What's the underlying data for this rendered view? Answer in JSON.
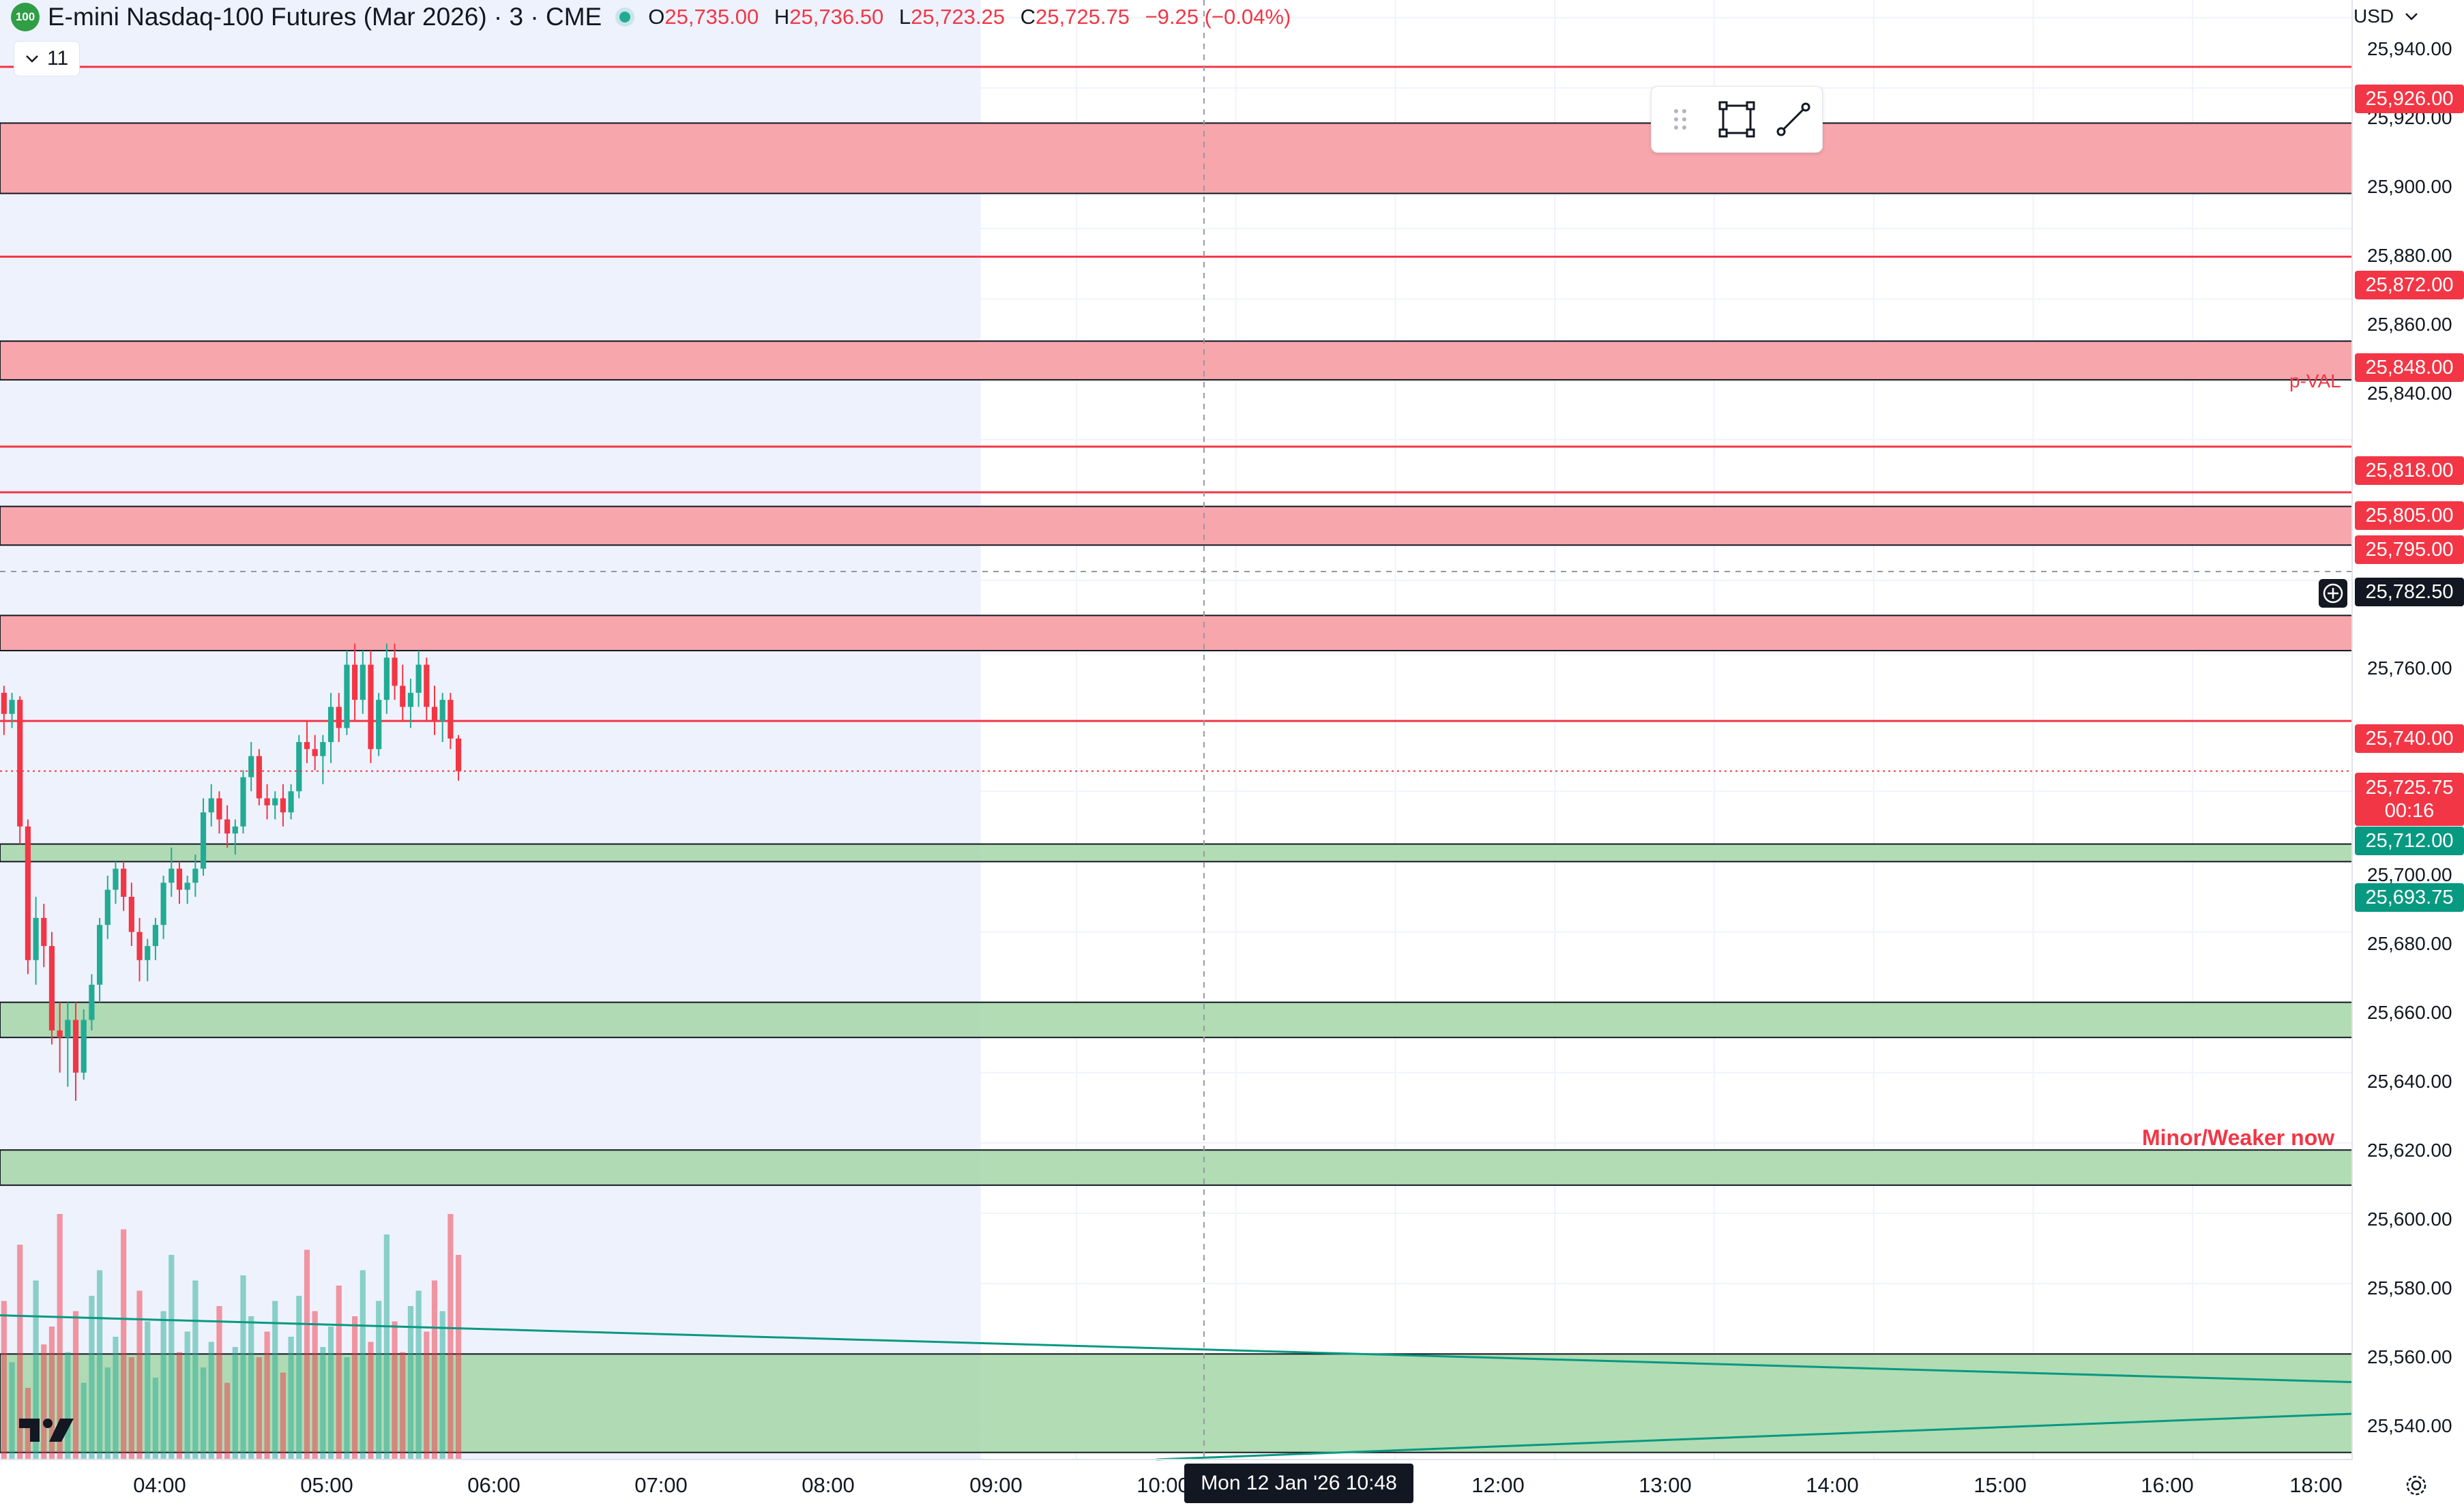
{
  "header": {
    "logo_text": "100",
    "title": "E-mini Nasdaq-100 Futures (Mar 2026) · 3 · CME",
    "open_label": "O",
    "open": "25,735.00",
    "high_label": "H",
    "high": "25,736.50",
    "low_label": "L",
    "low": "25,723.25",
    "close_label": "C",
    "close": "25,725.75",
    "change": "−9.25 (−0.04%)",
    "indicators_count": "11",
    "currency": "USD"
  },
  "drawing_toolbar": {
    "items": [
      "drag-handle-icon",
      "rectangle-icon",
      "trend-line-icon"
    ]
  },
  "annotations": {
    "pval": "p-VAL",
    "minor": "Minor/Weaker now"
  },
  "price_axis": {
    "labels": [
      "25,940.00",
      "25,920.00",
      "25,900.00",
      "25,880.00",
      "25,860.00",
      "25,840.00",
      "25,760.00",
      "25,700.00",
      "25,680.00",
      "25,660.00",
      "25,640.00",
      "25,620.00",
      "25,600.00",
      "25,580.00",
      "25,560.00",
      "25,540.00"
    ]
  },
  "price_tags": {
    "level_926": "25,926.00",
    "level_872": "25,872.00",
    "level_848": "25,848.00",
    "level_818": "25,818.00",
    "level_805": "25,805.00",
    "level_795": "25,795.00",
    "crosshair": "25,782.50",
    "level_740": "25,740.00",
    "last_price": "25,725.75",
    "countdown": "00:16",
    "level_712": "25,712.00",
    "level_693": "25,693.75"
  },
  "time_axis": {
    "labels": [
      "04:00",
      "05:00",
      "06:00",
      "07:00",
      "08:00",
      "09:00",
      "10:00",
      "12:00",
      "13:00",
      "14:00",
      "15:00",
      "16:00",
      "18:00"
    ],
    "crosshair": "Mon 12 Jan '26   10:48"
  },
  "chart_data": {
    "type": "candlestick",
    "symbol": "E-mini Nasdaq-100 Futures (Mar 2026)",
    "interval_minutes": 3,
    "y_range": [
      25530,
      25945
    ],
    "x_range": [
      "03:15",
      "18:00"
    ],
    "session_shading_end": "09:24",
    "crosshair": {
      "time": "10:48",
      "price": 25782.5
    },
    "resistance_zones": [
      [
        25890,
        25910
      ],
      [
        25837,
        25848
      ],
      [
        25790,
        25801
      ],
      [
        25760,
        25770
      ]
    ],
    "resistance_lines": [
      25926,
      25872,
      25818,
      25805,
      25740
    ],
    "support_zones": [
      [
        25700,
        25705
      ],
      [
        25650,
        25660
      ],
      [
        25608,
        25618
      ],
      [
        25532,
        25560
      ]
    ],
    "trendlines": [
      {
        "from": [
          "03:15",
          25571
        ],
        "to": [
          "18:00",
          25552
        ]
      },
      {
        "from": [
          "10:30",
          25530
        ],
        "to": [
          "18:00",
          25543
        ]
      }
    ],
    "colors": {
      "up": "#22ab94",
      "down": "#f23645",
      "resistance": "#f7a1a8",
      "support": "#a5d6a7"
    },
    "candles": [
      [
        25748,
        25750,
        25736,
        25742
      ],
      [
        25742,
        25748,
        25738,
        25746
      ],
      [
        25746,
        25747,
        25705,
        25710
      ],
      [
        25710,
        25712,
        25668,
        25672
      ],
      [
        25672,
        25690,
        25665,
        25684
      ],
      [
        25684,
        25688,
        25670,
        25676
      ],
      [
        25676,
        25680,
        25648,
        25652
      ],
      [
        25652,
        25660,
        25640,
        25650
      ],
      [
        25650,
        25660,
        25636,
        25655
      ],
      [
        25655,
        25660,
        25632,
        25640
      ],
      [
        25640,
        25658,
        25638,
        25655
      ],
      [
        25655,
        25668,
        25652,
        25665
      ],
      [
        25665,
        25684,
        25660,
        25682
      ],
      [
        25682,
        25696,
        25678,
        25692
      ],
      [
        25692,
        25700,
        25688,
        25698
      ],
      [
        25698,
        25700,
        25686,
        25690
      ],
      [
        25690,
        25694,
        25676,
        25680
      ],
      [
        25680,
        25684,
        25666,
        25672
      ],
      [
        25672,
        25678,
        25666,
        25676
      ],
      [
        25676,
        25684,
        25672,
        25682
      ],
      [
        25682,
        25696,
        25678,
        25694
      ],
      [
        25694,
        25704,
        25690,
        25698
      ],
      [
        25698,
        25700,
        25688,
        25692
      ],
      [
        25692,
        25696,
        25688,
        25694
      ],
      [
        25694,
        25702,
        25690,
        25698
      ],
      [
        25698,
        25718,
        25696,
        25714
      ],
      [
        25714,
        25722,
        25710,
        25718
      ],
      [
        25718,
        25720,
        25708,
        25712
      ],
      [
        25712,
        25716,
        25704,
        25708
      ],
      [
        25708,
        25712,
        25702,
        25710
      ],
      [
        25710,
        25726,
        25708,
        25724
      ],
      [
        25724,
        25734,
        25720,
        25730
      ],
      [
        25730,
        25732,
        25716,
        25718
      ],
      [
        25718,
        25722,
        25712,
        25716
      ],
      [
        25716,
        25720,
        25712,
        25718
      ],
      [
        25718,
        25722,
        25710,
        25714
      ],
      [
        25714,
        25722,
        25712,
        25720
      ],
      [
        25720,
        25736,
        25718,
        25734
      ],
      [
        25734,
        25740,
        25728,
        25732
      ],
      [
        25732,
        25736,
        25726,
        25730
      ],
      [
        25730,
        25736,
        25722,
        25734
      ],
      [
        25734,
        25748,
        25728,
        25744
      ],
      [
        25744,
        25748,
        25734,
        25738
      ],
      [
        25738,
        25760,
        25736,
        25756
      ],
      [
        25756,
        25762,
        25740,
        25746
      ],
      [
        25746,
        25760,
        25742,
        25756
      ],
      [
        25756,
        25760,
        25728,
        25732
      ],
      [
        25732,
        25748,
        25730,
        25746
      ],
      [
        25746,
        25762,
        25742,
        25758
      ],
      [
        25758,
        25762,
        25746,
        25750
      ],
      [
        25750,
        25756,
        25740,
        25744
      ],
      [
        25744,
        25752,
        25738,
        25748
      ],
      [
        25748,
        25760,
        25744,
        25756
      ],
      [
        25756,
        25758,
        25740,
        25744
      ],
      [
        25744,
        25750,
        25736,
        25740
      ],
      [
        25740,
        25748,
        25734,
        25746
      ],
      [
        25746,
        25748,
        25732,
        25735
      ],
      [
        25735,
        25736,
        25723,
        25725.75
      ]
    ],
    "volume": [
      62,
      38,
      84,
      28,
      70,
      45,
      52,
      96,
      42,
      58,
      30,
      64,
      74,
      36,
      48,
      90,
      40,
      66,
      54,
      32,
      58,
      80,
      42,
      50,
      70,
      36,
      46,
      60,
      30,
      44,
      72,
      56,
      40,
      50,
      62,
      34,
      48,
      64,
      82,
      58,
      44,
      52,
      68,
      40,
      56,
      74,
      46,
      62,
      88,
      54,
      42,
      60,
      66,
      50,
      70,
      58,
      96,
      80
    ]
  }
}
